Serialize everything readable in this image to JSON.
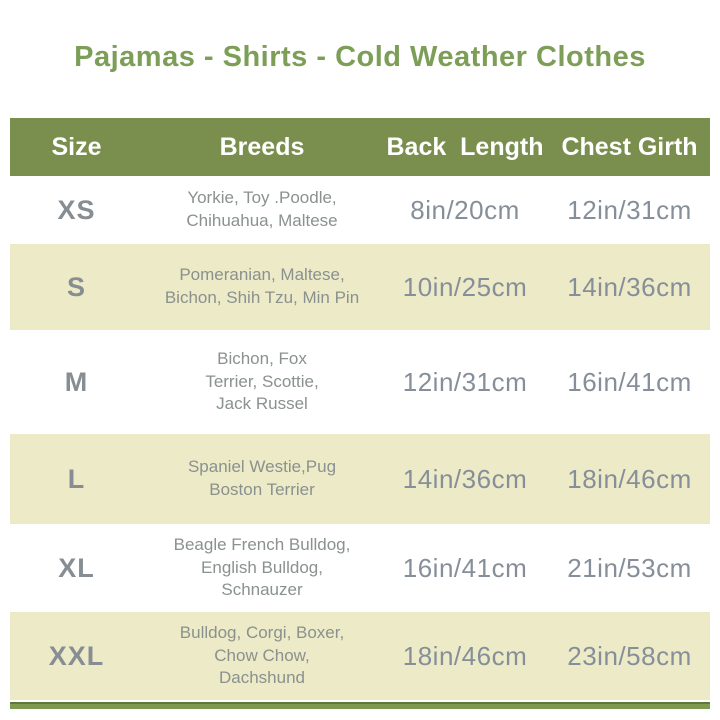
{
  "title": "Pajamas - Shirts - Cold Weather Clothes",
  "colors": {
    "title_green": "#7c9e57",
    "header_background": "#7a8e4d",
    "header_text": "#ffffff",
    "row_alt_background": "#edeac7",
    "size_text": "#878e93",
    "breeds_text": "#8a918e",
    "measure_text": "#868f99",
    "accent_bar": "#7d9a50"
  },
  "table": {
    "headers": {
      "size": "Size",
      "breeds": "Breeds",
      "back_length": "Back  Length",
      "chest_girth": "Chest Girth"
    },
    "rows": [
      {
        "size": "XS",
        "breeds": "Yorkie, Toy .Poodle,\nChihuahua, Maltese",
        "back_length": "8in/20cm",
        "chest_girth": "12in/31cm"
      },
      {
        "size": "S",
        "breeds": "Pomeranian, Maltese,\nBichon, Shih Tzu, Min Pin",
        "back_length": "10in/25cm",
        "chest_girth": "14in/36cm"
      },
      {
        "size": "M",
        "breeds": "Bichon, Fox\nTerrier, Scottie,\nJack Russel",
        "back_length": "12in/31cm",
        "chest_girth": "16in/41cm"
      },
      {
        "size": "L",
        "breeds": "Spaniel Westie,Pug\nBoston Terrier",
        "back_length": "14in/36cm",
        "chest_girth": "18in/46cm"
      },
      {
        "size": "XL",
        "breeds": "Beagle French Bulldog,\nEnglish Bulldog,\nSchnauzer",
        "back_length": "16in/41cm",
        "chest_girth": "21in/53cm"
      },
      {
        "size": "XXL",
        "breeds": "Bulldog, Corgi, Boxer,\nChow Chow,\nDachshund",
        "back_length": "18in/46cm",
        "chest_girth": "23in/58cm"
      }
    ]
  },
  "chart_data": {
    "type": "table",
    "title": "Pajamas - Shirts - Cold Weather Clothes",
    "columns": [
      "Size",
      "Breeds",
      "Back Length",
      "Chest Girth"
    ],
    "rows": [
      [
        "XS",
        "Yorkie, Toy .Poodle, Chihuahua, Maltese",
        "8in/20cm",
        "12in/31cm"
      ],
      [
        "S",
        "Pomeranian, Maltese, Bichon, Shih Tzu, Min Pin",
        "10in/25cm",
        "14in/36cm"
      ],
      [
        "M",
        "Bichon, Fox Terrier, Scottie, Jack Russel",
        "12in/31cm",
        "16in/41cm"
      ],
      [
        "L",
        "Spaniel Westie,Pug Boston Terrier",
        "14in/36cm",
        "18in/46cm"
      ],
      [
        "XL",
        "Beagle French Bulldog, English Bulldog, Schnauzer",
        "16in/41cm",
        "21in/53cm"
      ],
      [
        "XXL",
        "Bulldog, Corgi, Boxer, Chow Chow, Dachshund",
        "18in/46cm",
        "23in/58cm"
      ]
    ]
  }
}
